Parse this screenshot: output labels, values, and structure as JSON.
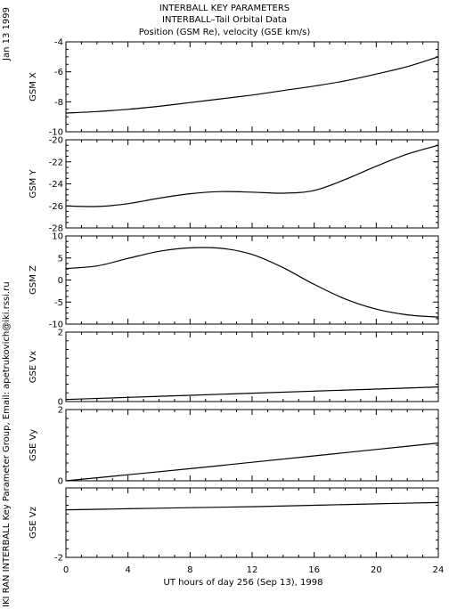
{
  "header": {
    "title_line1": "INTERBALL KEY PARAMETERS",
    "title_line2": "INTERBALL–Tail Orbital Data",
    "title_line3": "Position (GSM Re), velocity (GSE km/s)"
  },
  "side": {
    "date": "Jan 13 1999",
    "credit": "IKI RAN INTERBALL Key Parameter Group, Email: apetrukovich@iki.rssi.ru"
  },
  "chart_data": [
    {
      "type": "line",
      "ylabel": "GSM X",
      "ylim": [
        -10,
        -4
      ],
      "yticks": [
        -10,
        -8,
        -6,
        -4
      ],
      "x": [
        0,
        2,
        4,
        6,
        8,
        10,
        12,
        14,
        16,
        18,
        20,
        22,
        24
      ],
      "values": [
        -8.75,
        -8.65,
        -8.5,
        -8.3,
        -8.05,
        -7.8,
        -7.55,
        -7.25,
        -6.95,
        -6.6,
        -6.15,
        -5.65,
        -5.0
      ]
    },
    {
      "type": "line",
      "ylabel": "GSM Y",
      "ylim": [
        -28,
        -20
      ],
      "yticks": [
        -28,
        -26,
        -24,
        -22,
        -20
      ],
      "x": [
        0,
        2,
        4,
        6,
        8,
        10,
        12,
        14,
        16,
        18,
        20,
        22,
        24
      ],
      "values": [
        -26.0,
        -26.05,
        -25.8,
        -25.3,
        -24.9,
        -24.7,
        -24.75,
        -24.85,
        -24.6,
        -23.6,
        -22.4,
        -21.3,
        -20.5
      ]
    },
    {
      "type": "line",
      "ylabel": "GSM Z",
      "ylim": [
        -10,
        10
      ],
      "yticks": [
        -10,
        -5,
        0,
        5,
        10
      ],
      "x": [
        0,
        2,
        4,
        6,
        8,
        10,
        12,
        14,
        16,
        18,
        20,
        22,
        24
      ],
      "values": [
        2.6,
        3.2,
        4.9,
        6.5,
        7.3,
        7.2,
        5.8,
        2.8,
        -1.0,
        -4.3,
        -6.6,
        -7.9,
        -8.4
      ]
    },
    {
      "type": "line",
      "ylabel": "GSE Vx",
      "ylim": [
        0,
        2
      ],
      "yticks": [
        0,
        2
      ],
      "x": [
        0,
        4,
        8,
        12,
        16,
        20,
        24
      ],
      "values": [
        0.06,
        0.12,
        0.18,
        0.24,
        0.3,
        0.36,
        0.42
      ]
    },
    {
      "type": "line",
      "ylabel": "GSE Vy",
      "ylim": [
        0,
        2
      ],
      "yticks": [
        0,
        2
      ],
      "x": [
        0,
        4,
        8,
        12,
        16,
        20,
        24
      ],
      "values": [
        0.0,
        0.17,
        0.34,
        0.52,
        0.7,
        0.88,
        1.06
      ]
    },
    {
      "type": "line",
      "ylabel": "GSE Vz",
      "ylim": [
        -2,
        0
      ],
      "yticks": [
        -2
      ],
      "x": [
        0,
        4,
        8,
        12,
        16,
        20,
        24
      ],
      "values": [
        -0.63,
        -0.6,
        -0.57,
        -0.54,
        -0.5,
        -0.46,
        -0.42
      ]
    }
  ],
  "x_axis": {
    "xlim": [
      0,
      24
    ],
    "ticks": [
      0,
      4,
      8,
      12,
      16,
      20,
      24
    ],
    "xlabel": "UT hours of day 256 (Sep 13), 1998"
  }
}
